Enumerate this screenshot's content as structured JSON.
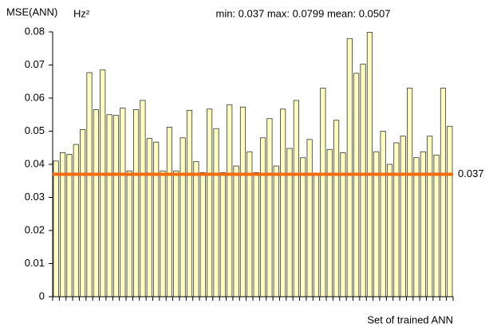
{
  "chart_data": {
    "type": "bar",
    "title": "min: 0.037  max: 0.0799  mean: 0.0507",
    "y_label": "MSE(ANN)",
    "y_unit": "Hz²",
    "x_label": "Set of trained ANN",
    "values": [
      0.041,
      0.0435,
      0.043,
      0.046,
      0.0505,
      0.0677,
      0.0565,
      0.0685,
      0.055,
      0.0548,
      0.057,
      0.038,
      0.0565,
      0.0593,
      0.0478,
      0.0467,
      0.038,
      0.0512,
      0.038,
      0.048,
      0.0563,
      0.0408,
      0.0375,
      0.0567,
      0.0508,
      0.0375,
      0.058,
      0.0395,
      0.0573,
      0.0438,
      0.0375,
      0.048,
      0.0538,
      0.0395,
      0.0567,
      0.0448,
      0.0593,
      0.042,
      0.0475,
      0.037,
      0.063,
      0.0445,
      0.0533,
      0.0435,
      0.078,
      0.0675,
      0.0703,
      0.0799,
      0.0438,
      0.05,
      0.04,
      0.0465,
      0.0485,
      0.063,
      0.042,
      0.0438,
      0.0485,
      0.0428,
      0.063,
      0.0515
    ],
    "color": "#ffffc0",
    "edge_color": "#333333",
    "ylim": [
      0,
      0.08
    ],
    "yticks": [
      0,
      0.01,
      0.02,
      0.03,
      0.04,
      0.05,
      0.06,
      0.07,
      0.08
    ],
    "hline": {
      "value": 0.037,
      "color": "#f26b0f"
    }
  }
}
